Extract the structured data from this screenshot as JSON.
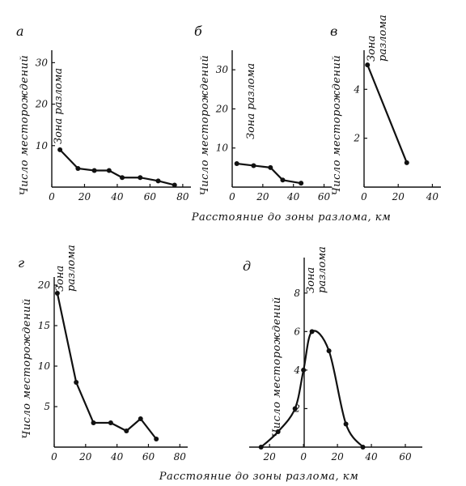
{
  "figure": {
    "shared_xlabel_top": "Расстояние до зоны разлома, км",
    "shared_xlabel_bottom": "Расстояние до зоны разлома, км"
  },
  "chart_data": [
    {
      "type": "line",
      "panel": "а",
      "ylabel": "Число месторождений",
      "annotation": "Зона разлома",
      "x": [
        5,
        16,
        26,
        35,
        43,
        54,
        65,
        75
      ],
      "y": [
        9,
        4.5,
        4,
        4,
        2.3,
        2.3,
        1.5,
        0.5
      ],
      "xlim": [
        0,
        85
      ],
      "ylim": [
        0,
        33
      ],
      "xticks": [
        0,
        20,
        40,
        60,
        80
      ],
      "xtick_labels": [
        "0",
        "20",
        "40",
        "60",
        "80"
      ],
      "yticks": [
        10,
        20,
        30
      ],
      "ytick_labels": [
        "10",
        "20",
        "30"
      ]
    },
    {
      "type": "line",
      "panel": "б",
      "ylabel": "Число месторождений",
      "annotation": "Зона разлома",
      "x": [
        3,
        14,
        25,
        33,
        45
      ],
      "y": [
        6,
        5.5,
        5,
        1.8,
        1
      ],
      "xlim": [
        0,
        65
      ],
      "ylim": [
        0,
        35
      ],
      "xticks": [
        0,
        20,
        40,
        60
      ],
      "xtick_labels": [
        "0",
        "20",
        "40",
        "60"
      ],
      "yticks": [
        10,
        20,
        30
      ],
      "ytick_labels": [
        "10",
        "20",
        "30"
      ]
    },
    {
      "type": "line",
      "panel": "в",
      "ylabel": "Число месторождений",
      "annotation": "Зона разлома",
      "x": [
        2,
        25
      ],
      "y": [
        5,
        1
      ],
      "xlim": [
        0,
        45
      ],
      "ylim": [
        0,
        5.6
      ],
      "xticks": [
        0,
        20,
        40
      ],
      "xtick_labels": [
        "0",
        "20",
        "40"
      ],
      "yticks": [
        2,
        4
      ],
      "ytick_labels": [
        "2",
        "4"
      ]
    },
    {
      "type": "line",
      "panel": "г",
      "ylabel": "Число месторождений",
      "annotation": "Зона разлома",
      "x": [
        2,
        14,
        25,
        36,
        46,
        55,
        65
      ],
      "y": [
        19,
        8,
        3,
        3,
        2,
        3.5,
        1
      ],
      "xlim": [
        0,
        85
      ],
      "ylim": [
        0,
        21
      ],
      "xticks": [
        0,
        20,
        40,
        60,
        80
      ],
      "xtick_labels": [
        "0",
        "20",
        "40",
        "60",
        "80"
      ],
      "yticks": [
        5,
        10,
        15,
        20
      ],
      "ytick_labels": [
        "5",
        "10",
        "15",
        "20"
      ]
    },
    {
      "type": "line",
      "panel": "д",
      "ylabel": "Число месторождений",
      "annotation": "Зона разлома",
      "x": [
        -25,
        -15,
        -5,
        0,
        5,
        15,
        25,
        35
      ],
      "y": [
        0,
        0.8,
        2,
        4,
        6,
        5,
        1.2,
        0
      ],
      "xlim": [
        -32,
        70
      ],
      "ylim": [
        0,
        9
      ],
      "xticks": [
        -20,
        0,
        20,
        40,
        60
      ],
      "xtick_labels": [
        "20",
        "0",
        "20",
        "40",
        "60"
      ],
      "yticks": [
        2,
        4,
        6,
        8
      ],
      "ytick_labels": [
        "2",
        "4",
        "6",
        "8"
      ]
    }
  ]
}
